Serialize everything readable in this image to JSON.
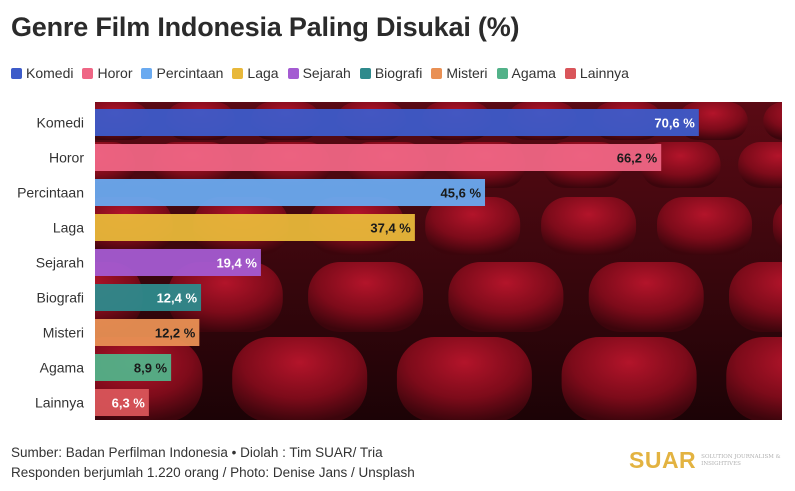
{
  "title": "Genre Film Indonesia Paling Disukai (%)",
  "footer": {
    "source": "Sumber: Badan Perfilman Indonesia • Diolah : Tim SUAR/ Tria",
    "note": "Responden berjumlah 1.220 orang / Photo: Denise Jans / Unsplash"
  },
  "brand": {
    "name": "SUAR",
    "tagline": "SOLUTION JOURNALISM & INSIGHTIVES"
  },
  "chart_data": {
    "type": "bar",
    "orientation": "horizontal",
    "categories": [
      "Komedi",
      "Horor",
      "Percintaan",
      "Laga",
      "Sejarah",
      "Biografi",
      "Misteri",
      "Agama",
      "Lainnya"
    ],
    "values": [
      70.6,
      66.2,
      45.6,
      37.4,
      19.4,
      12.4,
      12.2,
      8.9,
      6.3
    ],
    "value_labels": [
      "70,6 %",
      "66,2 %",
      "45,6 %",
      "37,4 %",
      "19,4 %",
      "12,4 %",
      "12,2 %",
      "8,9 %",
      "6,3 %"
    ],
    "colors": [
      "#3d5bc9",
      "#ef6685",
      "#6aaaf0",
      "#e8b83a",
      "#a45bd2",
      "#2e8a8c",
      "#e99054",
      "#52b289",
      "#d9555a"
    ],
    "label_colors": [
      "#ffffff",
      "#1a1a1a",
      "#1a1a1a",
      "#1a1a1a",
      "#ffffff",
      "#ffffff",
      "#1a1a1a",
      "#1a1a1a",
      "#ffffff"
    ],
    "legend_placement": "top",
    "xlim": [
      0,
      100
    ],
    "background_image": "cinema-seats-photo"
  }
}
